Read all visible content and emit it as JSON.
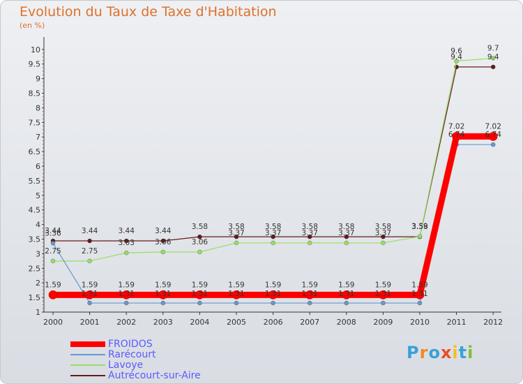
{
  "header": {
    "title": "Evolution du Taux de Taxe d'Habitation",
    "unit": "(en %)"
  },
  "logo": {
    "text": "Proxiti"
  },
  "chart_data": {
    "type": "line",
    "title": "Evolution du Taux de Taxe d'Habitation",
    "ylabel": "(en %)",
    "xlabel": "",
    "x": [
      "2000",
      "2001",
      "2002",
      "2003",
      "2004",
      "2005",
      "2006",
      "2007",
      "2008",
      "2009",
      "2010",
      "2011",
      "2012"
    ],
    "ylim": [
      1,
      10
    ],
    "yticks": [
      "1",
      "1.5",
      "2",
      "2.5",
      "3",
      "3.5",
      "4",
      "4.5",
      "5",
      "5.5",
      "6",
      "6.5",
      "7",
      "7.5",
      "8",
      "8.5",
      "9",
      "9.5",
      "10"
    ],
    "grid": false,
    "legend_position": "bottom-left",
    "series": [
      {
        "name": "FROIDOS",
        "color": "#ff0000",
        "values": [
          1.59,
          1.59,
          1.59,
          1.59,
          1.59,
          1.59,
          1.59,
          1.59,
          1.59,
          1.59,
          1.59,
          7.02,
          7.02
        ],
        "labels": [
          "1.59",
          "1.59",
          "1.59",
          "1.59",
          "1.59",
          "1.59",
          "1.59",
          "1.59",
          "1.59",
          "1.59",
          "1.59",
          "7.02",
          "7.02"
        ]
      },
      {
        "name": "Rarécourt",
        "color": "#6699cc",
        "values": [
          3.36,
          1.31,
          1.31,
          1.31,
          1.31,
          1.31,
          1.31,
          1.31,
          1.31,
          1.31,
          1.31,
          6.74,
          6.74
        ],
        "labels": [
          "3.36",
          "1.31",
          "1.31",
          "1.31",
          "1.31",
          "1.31",
          "1.31",
          "1.31",
          "1.31",
          "1.31",
          "1.31",
          "6.74",
          "6.74"
        ]
      },
      {
        "name": "Lavoye",
        "color": "#99dd66",
        "values": [
          2.75,
          2.75,
          3.03,
          3.06,
          3.06,
          3.37,
          3.37,
          3.37,
          3.37,
          3.37,
          3.59,
          9.6,
          9.7
        ],
        "labels": [
          "2.75",
          "2.75",
          "3.03",
          "3.06",
          "3.06",
          "3.37",
          "3.37",
          "3.37",
          "3.37",
          "3.37",
          "3.59",
          "9.6",
          "9.7"
        ]
      },
      {
        "name": "Autrécourt-sur-Aire",
        "color": "#661a1a",
        "values": [
          3.44,
          3.44,
          3.44,
          3.44,
          3.58,
          3.58,
          3.58,
          3.58,
          3.58,
          3.58,
          3.58,
          9.4,
          9.4
        ],
        "labels": [
          "3.44",
          "3.44",
          "3.44",
          "3.44",
          "3.58",
          "3.58",
          "3.58",
          "3.58",
          "3.58",
          "3.58",
          "3.58",
          "9.4",
          "9.4"
        ]
      }
    ]
  }
}
